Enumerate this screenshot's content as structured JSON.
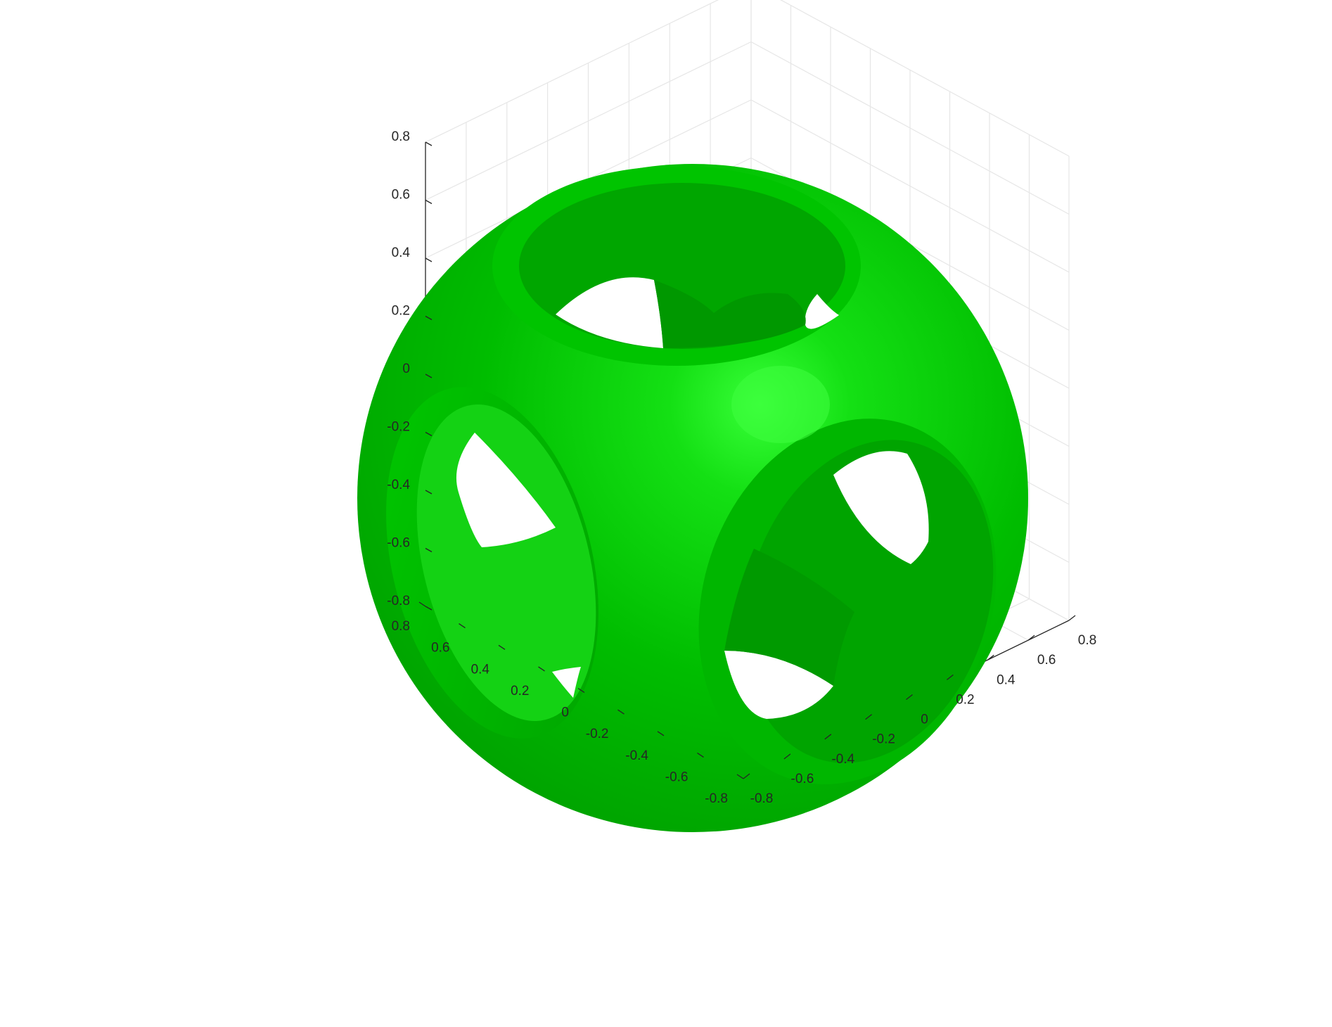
{
  "chart_data": {
    "type": "surface3d",
    "title": "",
    "xlabel": "",
    "ylabel": "",
    "zlabel": "",
    "surface": "sphere intersected with a cube, with cylindrical holes bored along each axis",
    "surface_color": "#00b000",
    "highlight_color": "#33ff33",
    "hole_background": "#ffffff",
    "grid": true,
    "xlim": [
      -0.8,
      0.8
    ],
    "ylim": [
      -0.8,
      0.8
    ],
    "zlim": [
      -0.8,
      0.8
    ],
    "x_ticks": [
      "-0.8",
      "-0.6",
      "-0.4",
      "-0.2",
      "0",
      "0.2",
      "0.4",
      "0.6",
      "0.8"
    ],
    "y_ticks": [
      "-0.8",
      "-0.6",
      "-0.4",
      "-0.2",
      "0",
      "0.2",
      "0.4",
      "0.6",
      "0.8"
    ],
    "z_ticks": [
      "-0.8",
      "-0.6",
      "-0.4",
      "-0.2",
      "0",
      "0.2",
      "0.4",
      "0.6",
      "0.8"
    ]
  }
}
